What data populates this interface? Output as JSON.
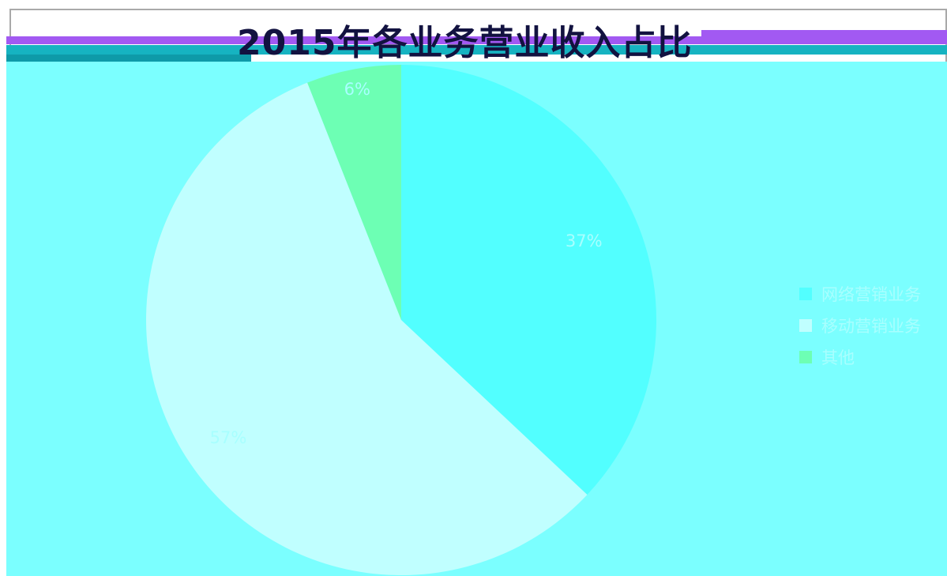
{
  "chart_data": {
    "type": "pie",
    "title": "2015年各业务营业收入占比",
    "series": [
      {
        "name": "网络营销业务",
        "value": 37,
        "label": "37%",
        "color": "#52ffff"
      },
      {
        "name": "移动营销业务",
        "value": 57,
        "label": "57%",
        "color": "#c0ffff"
      },
      {
        "name": "其他",
        "value": 6,
        "label": "6%",
        "color": "#6dffb4"
      }
    ],
    "legend_position": "right",
    "label_color": "#a8ffff",
    "extra_wedge_color": "#c0ffdc"
  }
}
